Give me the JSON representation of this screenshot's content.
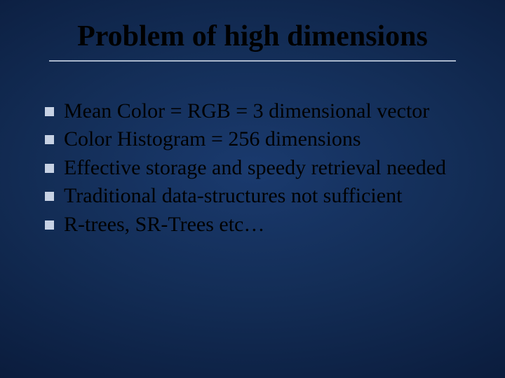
{
  "slide": {
    "title": "Problem of high dimensions",
    "title_color": "#000000",
    "title_fontsize": 42,
    "rule_color": "#a9b7cc",
    "background": {
      "type": "radial-gradient",
      "stops": [
        "#1a3a6e",
        "#132d56",
        "#0b1d3e",
        "#040c1e"
      ]
    },
    "bullets": [
      "Mean Color = RGB = 3 dimensional vector",
      "Color Histogram = 256 dimensions",
      "Effective storage and speedy retrieval needed",
      "Traditional data-structures not sufficient",
      "R-trees, SR-Trees etc…"
    ],
    "bullet_marker_color": "#c7d2e4",
    "bullet_text_color": "#000000",
    "bullet_fontsize": 30
  }
}
